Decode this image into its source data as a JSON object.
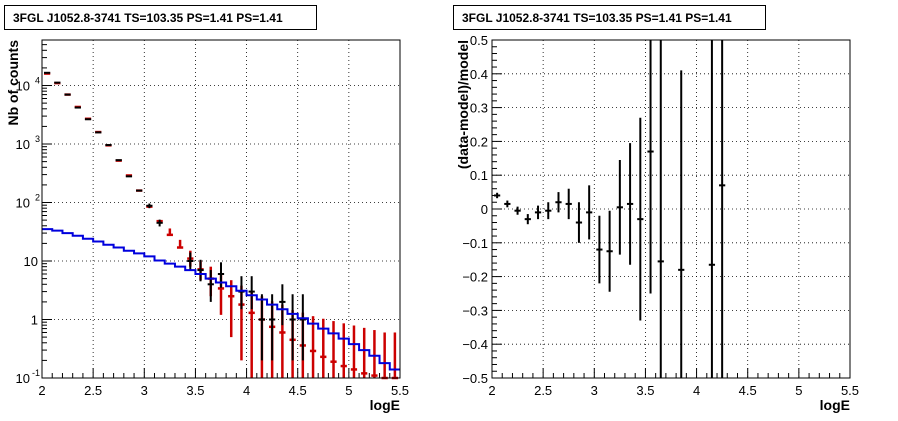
{
  "chart_data": [
    {
      "type": "step",
      "title": "3FGL J1052.8-3741 TS=103.35 PS=1.41 PS=1.41",
      "xlabel": "logE",
      "ylabel": "Nb of counts",
      "yscale": "log",
      "xlim": [
        2,
        5.5
      ],
      "ylim": [
        0.1,
        60000
      ],
      "grid": true,
      "xticks": [
        "2",
        "2.5",
        "3",
        "3.5",
        "4",
        "4.5",
        "5",
        "5.5"
      ],
      "yticks": [
        {
          "v": 0.1,
          "label": "10",
          "exp": "-1"
        },
        {
          "v": 1,
          "label": "1",
          "exp": ""
        },
        {
          "v": 10,
          "label": "10",
          "exp": ""
        },
        {
          "v": 100,
          "label": "10",
          "exp": "2"
        },
        {
          "v": 1000,
          "label": "10",
          "exp": "3"
        },
        {
          "v": 10000,
          "label": "10",
          "exp": "4"
        }
      ],
      "bin_width": 0.1,
      "series": [
        {
          "role": "model",
          "color": "#cc0000",
          "x": [
            2.05,
            2.15,
            2.25,
            2.35,
            2.45,
            2.55,
            2.65,
            2.75,
            2.85,
            2.95,
            3.05,
            3.15,
            3.25,
            3.35,
            3.45,
            3.55,
            3.65,
            3.75,
            3.85,
            3.95,
            4.05,
            4.15,
            4.25,
            4.35,
            4.45,
            4.55,
            4.65,
            4.75,
            4.85,
            4.95,
            5.05,
            5.15,
            5.25,
            5.35,
            5.45
          ],
          "y": [
            16000,
            11000,
            7000,
            4300,
            2700,
            1600,
            950,
            520,
            290,
            160,
            85,
            48,
            28,
            17,
            11,
            7.2,
            5,
            3.4,
            2.5,
            1.8,
            1.3,
            1.0,
            0.75,
            0.6,
            0.45,
            0.36,
            0.29,
            0.23,
            0.19,
            0.16,
            0.14,
            0.12,
            0.11,
            0.1,
            0.1
          ],
          "yerr_lo": [
            0,
            0,
            0,
            0,
            0,
            0,
            0,
            0,
            0,
            0,
            0,
            0,
            0,
            0,
            3,
            2.5,
            2.5,
            2.2,
            2.0,
            1.6,
            1.2,
            0.97,
            0.74,
            0.59,
            0.44,
            0.35,
            0.28,
            0.22,
            0.18,
            0.15,
            0.13,
            0.11,
            0.1,
            0.1,
            0.1
          ],
          "yerr_hi": [
            0,
            0,
            0,
            0,
            0,
            0,
            0,
            0,
            0,
            0,
            0,
            0,
            8,
            6,
            4,
            3,
            3,
            2.5,
            2.2,
            2.0,
            1.7,
            1.5,
            1.3,
            1.2,
            1.0,
            0.95,
            0.85,
            0.8,
            0.75,
            0.7,
            0.65,
            0.6,
            0.55,
            0.5,
            0.5
          ]
        },
        {
          "role": "data",
          "color": "#000000",
          "x": [
            2.05,
            2.15,
            2.25,
            2.35,
            2.45,
            2.55,
            2.65,
            2.75,
            2.85,
            2.95,
            3.05,
            3.15,
            3.45,
            3.55,
            3.65,
            3.75,
            3.95,
            4.05,
            4.15,
            4.25,
            4.35,
            4.45,
            4.55
          ],
          "y": [
            16500,
            11200,
            7000,
            4200,
            2650,
            1580,
            960,
            530,
            280,
            160,
            88,
            45,
            10,
            7,
            4,
            6,
            3,
            3,
            1,
            1,
            2,
            1,
            1
          ],
          "yerr_lo": [
            0,
            0,
            0,
            0,
            0,
            0,
            0,
            0,
            0,
            0,
            8,
            6,
            3,
            2.5,
            2,
            2.5,
            1.5,
            1.5,
            0.8,
            0.8,
            1.2,
            0.8,
            0.8
          ],
          "yerr_hi": [
            0,
            0,
            0,
            0,
            0,
            0,
            0,
            0,
            0,
            0,
            8,
            6,
            4,
            3.5,
            3,
            3.5,
            2.5,
            2.5,
            1.7,
            1.7,
            2.0,
            1.7,
            1.7
          ]
        },
        {
          "role": "source",
          "color": "#0000dd",
          "x": [
            2.05,
            2.15,
            2.25,
            2.35,
            2.45,
            2.55,
            2.65,
            2.75,
            2.85,
            2.95,
            3.05,
            3.15,
            3.25,
            3.35,
            3.45,
            3.55,
            3.65,
            3.75,
            3.85,
            3.95,
            4.05,
            4.15,
            4.25,
            4.35,
            4.45,
            4.55,
            4.65,
            4.75,
            4.85,
            4.95,
            5.05,
            5.15,
            5.25,
            5.35,
            5.45
          ],
          "y": [
            35,
            33,
            30,
            27,
            24,
            21.5,
            19,
            17,
            15,
            13.5,
            12,
            10.2,
            9,
            8,
            7,
            6,
            5,
            4.3,
            3.7,
            3.1,
            2.6,
            2.2,
            1.8,
            1.5,
            1.25,
            1.05,
            0.85,
            0.7,
            0.58,
            0.47,
            0.38,
            0.3,
            0.24,
            0.18,
            0.14
          ]
        }
      ]
    },
    {
      "type": "scatter",
      "title": "3FGL J1052.8-3741 TS=103.35 PS=1.41 PS=1.41",
      "xlabel": "logE",
      "ylabel": "(data-model)/model",
      "xlim": [
        2,
        5.5
      ],
      "ylim": [
        -0.5,
        0.5
      ],
      "grid": true,
      "xticks": [
        "2",
        "2.5",
        "3",
        "3.5",
        "4",
        "4.5",
        "5",
        "5.5"
      ],
      "yticks": [
        "-0.5",
        "-0.4",
        "-0.3",
        "-0.2",
        "-0.1",
        "0",
        "0.1",
        "0.2",
        "0.3",
        "0.4",
        "0.5"
      ],
      "bin_width": 0.1,
      "series": [
        {
          "role": "residual",
          "color": "#000000",
          "x": [
            2.05,
            2.15,
            2.25,
            2.35,
            2.45,
            2.55,
            2.65,
            2.75,
            2.85,
            2.95,
            3.05,
            3.15,
            3.25,
            3.35,
            3.45,
            3.55,
            3.65,
            3.85,
            4.15,
            4.25
          ],
          "y": [
            0.04,
            0.015,
            -0.005,
            -0.03,
            -0.01,
            -0.005,
            0.02,
            0.015,
            -0.04,
            -0.01,
            -0.12,
            -0.125,
            0.005,
            0.015,
            -0.03,
            0.17,
            -0.155,
            -0.18,
            -0.165,
            0.07
          ],
          "yerr": [
            0.008,
            0.01,
            0.012,
            0.015,
            0.02,
            0.025,
            0.03,
            0.045,
            0.06,
            0.08,
            0.1,
            0.12,
            0.14,
            0.18,
            0.3,
            0.42,
            0.7,
            0.59,
            0.75,
            0.7
          ]
        }
      ]
    }
  ]
}
